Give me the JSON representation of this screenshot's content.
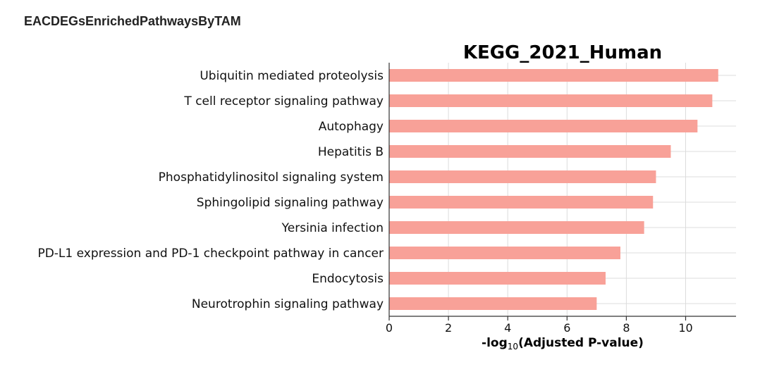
{
  "page_title": "EACDEGsEnrichedPathwaysByTAM",
  "chart_data": {
    "type": "bar",
    "orientation": "horizontal",
    "title": "KEGG_2021_Human",
    "xlabel_prefix": "-log",
    "xlabel_sub": "10",
    "xlabel_suffix": "(Adjusted P-value)",
    "ylabel": "",
    "categories": [
      "Ubiquitin mediated proteolysis",
      "T cell receptor signaling pathway",
      "Autophagy",
      "Hepatitis B",
      "Phosphatidylinositol signaling system",
      "Sphingolipid signaling pathway",
      "Yersinia infection",
      "PD-L1 expression and PD-1 checkpoint pathway in cancer",
      "Endocytosis",
      "Neurotrophin signaling pathway"
    ],
    "values": [
      11.1,
      10.9,
      10.4,
      9.5,
      9.0,
      8.9,
      8.6,
      7.8,
      7.3,
      7.0
    ],
    "xticks": [
      0,
      2,
      4,
      6,
      8,
      10
    ],
    "xlim": [
      0,
      11.7
    ],
    "grid": true,
    "bar_color": "#f8a198"
  }
}
